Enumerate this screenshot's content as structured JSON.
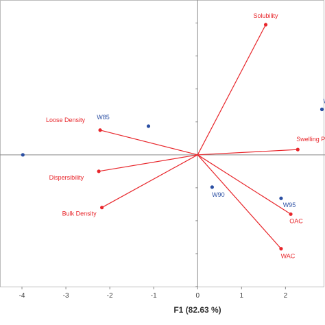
{
  "colors": {
    "variables": "#e8262b",
    "observations": "#2b4fa3",
    "axis": "#888888",
    "frame": "#bbbbbb"
  },
  "chart_data": {
    "type": "scatter",
    "subtype": "biplot",
    "title": "",
    "xlabel": "F1 (82.63 %)",
    "ylabel": "",
    "xlim": [
      -4.5,
      2.9
    ],
    "ylim": [
      -4.0,
      4.7
    ],
    "x_ticks": [
      -4,
      -3,
      -2,
      -1,
      0,
      1,
      2
    ],
    "grid": false,
    "series": [
      {
        "name": "",
        "kind": "loading-vectors",
        "points": [
          {
            "label": "Solubility",
            "x": 1.55,
            "y": 3.95
          },
          {
            "label": "Swelling P",
            "x": 2.28,
            "y": 0.16
          },
          {
            "label": "Loose Density",
            "x": -2.22,
            "y": 0.75
          },
          {
            "label": "Dispersibility",
            "x": -2.25,
            "y": -0.5
          },
          {
            "label": "Bulk Density",
            "x": -2.18,
            "y": -1.6
          },
          {
            "label": "OAC",
            "x": 2.12,
            "y": -1.8
          },
          {
            "label": "WAC",
            "x": 1.9,
            "y": -2.85
          }
        ]
      },
      {
        "name": "",
        "kind": "observations",
        "points": [
          {
            "label": "W85",
            "x": -1.12,
            "y": 0.87
          },
          {
            "label": "W90",
            "x": 0.33,
            "y": -0.98
          },
          {
            "label": "W95",
            "x": 1.9,
            "y": -1.32
          },
          {
            "label": "W",
            "x": 2.83,
            "y": 1.38
          },
          {
            "label": "",
            "x": -3.98,
            "y": 0.0
          }
        ]
      }
    ]
  }
}
